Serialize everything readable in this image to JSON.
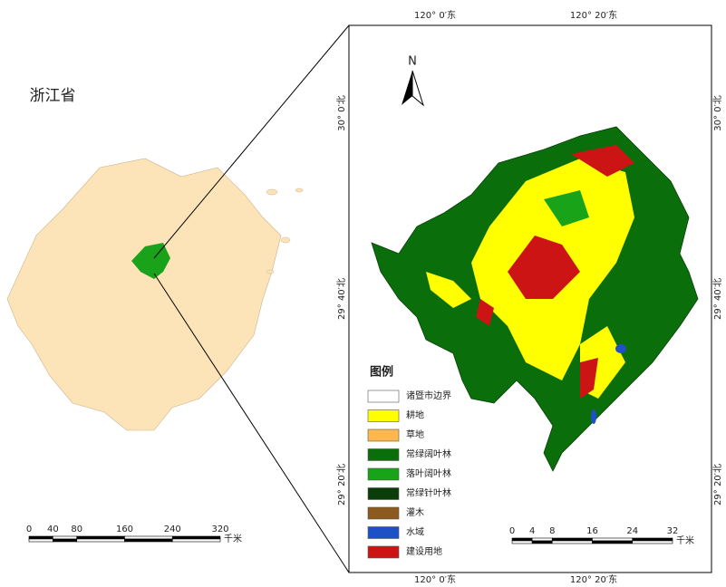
{
  "province": {
    "label": "浙江省"
  },
  "overview_scale": {
    "ticks": [
      0,
      40,
      80,
      160,
      240,
      320
    ],
    "unit": "千米"
  },
  "detail_map": {
    "north": "N",
    "top_labels": [
      "120° 0′东",
      "120° 20′东"
    ],
    "bottom_labels": [
      "120° 0′东",
      "120° 20′东"
    ],
    "left_labels": [
      "30° 0′北",
      "29° 40′北",
      "29° 20′北"
    ],
    "right_labels": [
      "30° 0′北",
      "29° 40′北",
      "29° 20′北"
    ],
    "legend": {
      "title": "图例",
      "items": [
        {
          "label": "诸暨市边界",
          "color": "#ffffff"
        },
        {
          "label": "耕地",
          "color": "#ffff00"
        },
        {
          "label": "草地",
          "color": "#ffb84d"
        },
        {
          "label": "常绿阔叶林",
          "color": "#0a6e0a"
        },
        {
          "label": "落叶阔叶林",
          "color": "#19a319"
        },
        {
          "label": "常绿针叶林",
          "color": "#0a3d0a"
        },
        {
          "label": "灌木",
          "color": "#8c5a1e"
        },
        {
          "label": "水域",
          "color": "#1e50c8"
        },
        {
          "label": "建设用地",
          "color": "#cc1414"
        }
      ]
    },
    "scale": {
      "ticks": [
        0,
        4,
        8,
        16,
        24,
        32
      ],
      "unit": "千米"
    }
  }
}
